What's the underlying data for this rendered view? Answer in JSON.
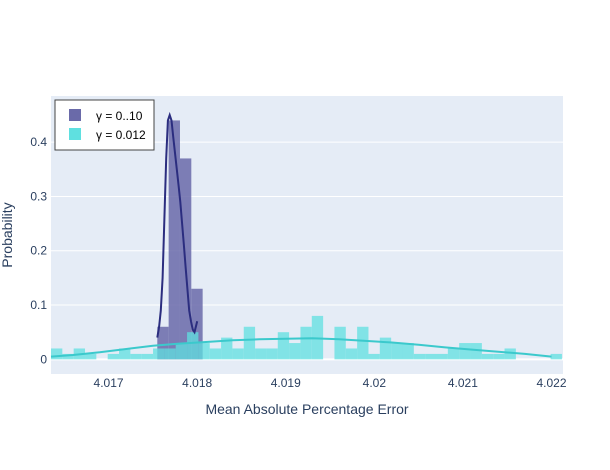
{
  "chart_data": {
    "type": "histogram",
    "xlabel": "Mean Absolute Percentage Error",
    "ylabel": "Probability",
    "xlim": [
      4.01635,
      4.02213
    ],
    "ylim": [
      -0.027,
      0.485
    ],
    "x_ticks": [
      {
        "value": 4.017,
        "label": "4.017"
      },
      {
        "value": 4.018,
        "label": "4.018"
      },
      {
        "value": 4.019,
        "label": "4.019"
      },
      {
        "value": 4.02,
        "label": "4.02"
      },
      {
        "value": 4.021,
        "label": "4.021"
      },
      {
        "value": 4.022,
        "label": "4.022"
      }
    ],
    "y_ticks": [
      {
        "value": 0,
        "label": "0"
      },
      {
        "value": 0.1,
        "label": "0.1"
      },
      {
        "value": 0.2,
        "label": "0.2"
      },
      {
        "value": 0.3,
        "label": "0.3"
      },
      {
        "value": 0.4,
        "label": "0.4"
      }
    ],
    "grid": true,
    "legend_position": "top-left",
    "series": [
      {
        "name": "γ = 0..10",
        "color": "#6a6aa9",
        "line_color": "#2b2d7f",
        "bin_width": 0.000128,
        "bins": [
          {
            "x0": 4.01755,
            "y": 0.06
          },
          {
            "x0": 4.017678,
            "y": 0.44
          },
          {
            "x0": 4.017806,
            "y": 0.37
          },
          {
            "x0": 4.017934,
            "y": 0.13
          }
        ],
        "curve": [
          [
            4.01755,
            0.04
          ],
          [
            4.01757,
            0.06
          ],
          [
            4.01759,
            0.09
          ],
          [
            4.01761,
            0.15
          ],
          [
            4.01763,
            0.26
          ],
          [
            4.01765,
            0.37
          ],
          [
            4.01767,
            0.44
          ],
          [
            4.01769,
            0.45
          ],
          [
            4.01771,
            0.44
          ],
          [
            4.01773,
            0.41
          ],
          [
            4.01775,
            0.38
          ],
          [
            4.01777,
            0.35
          ],
          [
            4.01779,
            0.32
          ],
          [
            4.01781,
            0.29
          ],
          [
            4.01783,
            0.25
          ],
          [
            4.01785,
            0.21
          ],
          [
            4.01787,
            0.17
          ],
          [
            4.01789,
            0.13
          ],
          [
            4.01791,
            0.09
          ],
          [
            4.01793,
            0.07
          ],
          [
            4.01795,
            0.055
          ],
          [
            4.01797,
            0.05
          ],
          [
            4.018,
            0.07
          ]
        ]
      },
      {
        "name": "γ = 0.012",
        "color": "#5fe0e0",
        "line_color": "#3bc9cc",
        "bin_width": 0.000128,
        "bins": [
          {
            "x0": 4.01635,
            "y": 0.02
          },
          {
            "x0": 4.016478,
            "y": 0.01
          },
          {
            "x0": 4.016606,
            "y": 0.02
          },
          {
            "x0": 4.016734,
            "y": 0.01
          },
          {
            "x0": 4.016862,
            "y": 0.0
          },
          {
            "x0": 4.01699,
            "y": 0.01
          },
          {
            "x0": 4.017118,
            "y": 0.02
          },
          {
            "x0": 4.017246,
            "y": 0.01
          },
          {
            "x0": 4.017374,
            "y": 0.01
          },
          {
            "x0": 4.017502,
            "y": 0.02
          },
          {
            "x0": 4.01763,
            "y": 0.02
          },
          {
            "x0": 4.017758,
            "y": 0.03
          },
          {
            "x0": 4.017886,
            "y": 0.05
          },
          {
            "x0": 4.018014,
            "y": 0.03
          },
          {
            "x0": 4.018142,
            "y": 0.02
          },
          {
            "x0": 4.01827,
            "y": 0.04
          },
          {
            "x0": 4.018398,
            "y": 0.02
          },
          {
            "x0": 4.018526,
            "y": 0.06
          },
          {
            "x0": 4.018654,
            "y": 0.02
          },
          {
            "x0": 4.018782,
            "y": 0.02
          },
          {
            "x0": 4.01891,
            "y": 0.05
          },
          {
            "x0": 4.019038,
            "y": 0.03
          },
          {
            "x0": 4.019166,
            "y": 0.06
          },
          {
            "x0": 4.019294,
            "y": 0.08
          },
          {
            "x0": 4.019422,
            "y": 0.0
          },
          {
            "x0": 4.01955,
            "y": 0.06
          },
          {
            "x0": 4.019678,
            "y": 0.02
          },
          {
            "x0": 4.019806,
            "y": 0.06
          },
          {
            "x0": 4.019934,
            "y": 0.01
          },
          {
            "x0": 4.020062,
            "y": 0.04
          },
          {
            "x0": 4.02019,
            "y": 0.03
          },
          {
            "x0": 4.020318,
            "y": 0.03
          },
          {
            "x0": 4.020446,
            "y": 0.01
          },
          {
            "x0": 4.020574,
            "y": 0.01
          },
          {
            "x0": 4.020702,
            "y": 0.01
          },
          {
            "x0": 4.02083,
            "y": 0.02
          },
          {
            "x0": 4.020958,
            "y": 0.03
          },
          {
            "x0": 4.021086,
            "y": 0.03
          },
          {
            "x0": 4.021214,
            "y": 0.01
          },
          {
            "x0": 4.021342,
            "y": 0.01
          },
          {
            "x0": 4.02147,
            "y": 0.02
          },
          {
            "x0": 4.0216,
            "y": 0.0
          },
          {
            "x0": 4.02173,
            "y": 0.0
          },
          {
            "x0": 4.02186,
            "y": 0.0
          },
          {
            "x0": 4.02199,
            "y": 0.01
          }
        ],
        "curve": [
          [
            4.01635,
            0.005
          ],
          [
            4.0166,
            0.008
          ],
          [
            4.0169,
            0.013
          ],
          [
            4.0172,
            0.019
          ],
          [
            4.0175,
            0.025
          ],
          [
            4.0178,
            0.029
          ],
          [
            4.0181,
            0.032
          ],
          [
            4.0184,
            0.035
          ],
          [
            4.0187,
            0.037
          ],
          [
            4.019,
            0.038
          ],
          [
            4.0193,
            0.039
          ],
          [
            4.0196,
            0.037
          ],
          [
            4.0199,
            0.034
          ],
          [
            4.0202,
            0.031
          ],
          [
            4.0205,
            0.027
          ],
          [
            4.0208,
            0.022
          ],
          [
            4.0211,
            0.018
          ],
          [
            4.0214,
            0.014
          ],
          [
            4.0217,
            0.01
          ],
          [
            4.022,
            0.005
          ]
        ]
      }
    ]
  }
}
